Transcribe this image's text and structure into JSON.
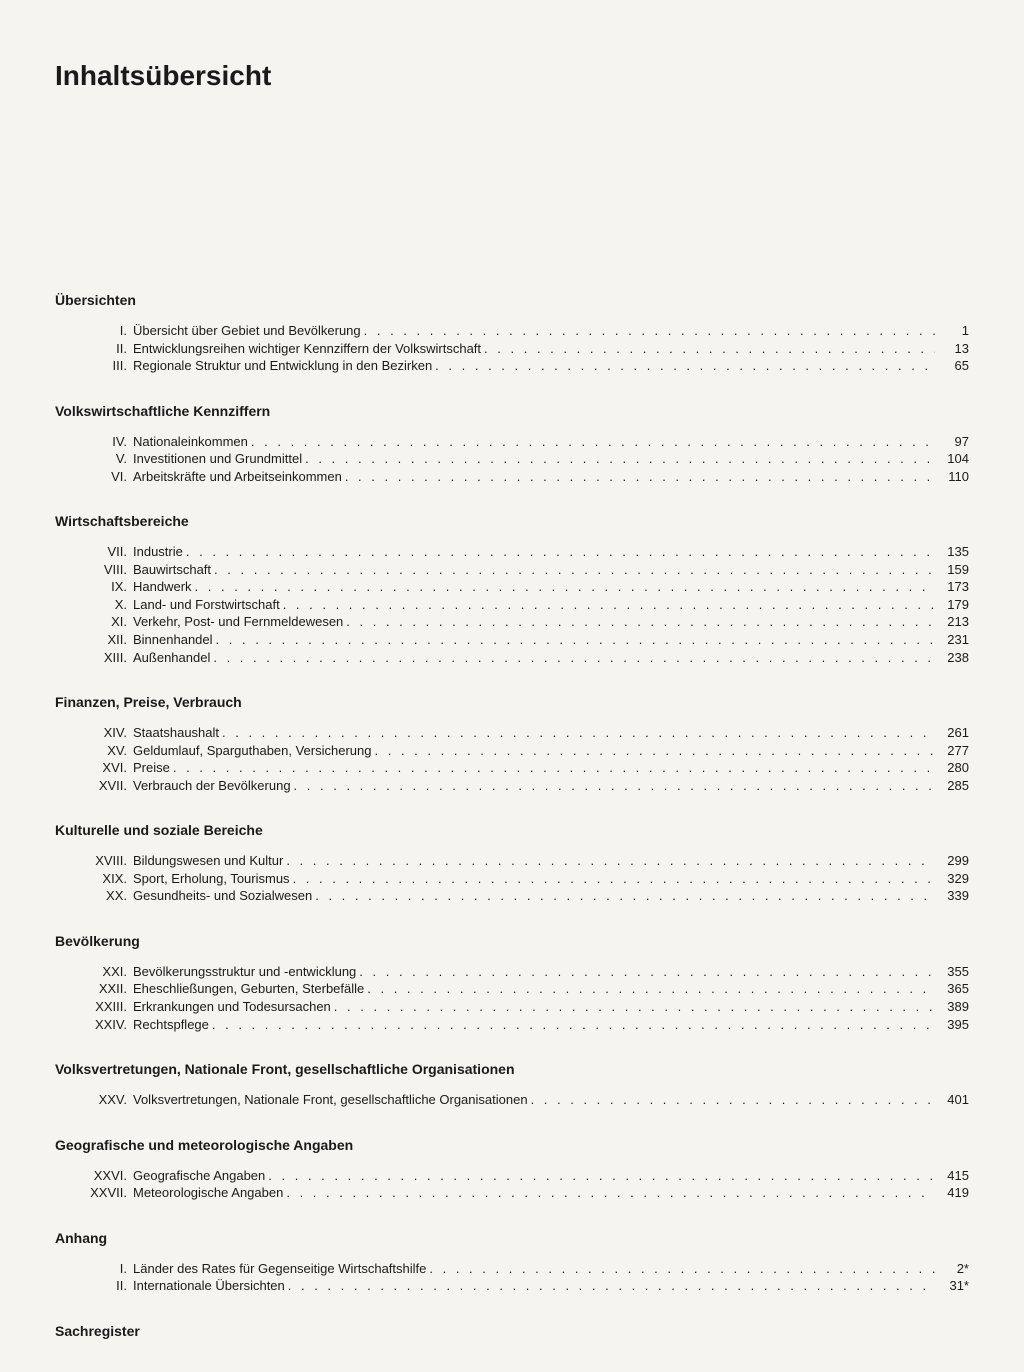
{
  "title": "Inhaltsübersicht",
  "sections": [
    {
      "header": "Übersichten",
      "entries": [
        {
          "numeral": "I.",
          "title": "Übersicht über Gebiet und Bevölkerung",
          "page": "1"
        },
        {
          "numeral": "II.",
          "title": "Entwicklungsreihen wichtiger Kennziffern der Volkswirtschaft",
          "page": "13"
        },
        {
          "numeral": "III.",
          "title": "Regionale Struktur und Entwicklung in den Bezirken",
          "page": "65"
        }
      ]
    },
    {
      "header": "Volkswirtschaftliche Kennziffern",
      "entries": [
        {
          "numeral": "IV.",
          "title": "Nationaleinkommen",
          "page": "97"
        },
        {
          "numeral": "V.",
          "title": "Investitionen und Grundmittel",
          "page": "104"
        },
        {
          "numeral": "VI.",
          "title": "Arbeitskräfte und Arbeitseinkommen",
          "page": "110"
        }
      ]
    },
    {
      "header": "Wirtschaftsbereiche",
      "entries": [
        {
          "numeral": "VII.",
          "title": "Industrie",
          "page": "135"
        },
        {
          "numeral": "VIII.",
          "title": "Bauwirtschaft",
          "page": "159"
        },
        {
          "numeral": "IX.",
          "title": "Handwerk",
          "page": "173"
        },
        {
          "numeral": "X.",
          "title": "Land- und Forstwirtschaft",
          "page": "179"
        },
        {
          "numeral": "XI.",
          "title": "Verkehr, Post- und Fernmeldewesen",
          "page": "213"
        },
        {
          "numeral": "XII.",
          "title": "Binnenhandel",
          "page": "231"
        },
        {
          "numeral": "XIII.",
          "title": "Außenhandel",
          "page": "238"
        }
      ]
    },
    {
      "header": "Finanzen, Preise, Verbrauch",
      "entries": [
        {
          "numeral": "XIV.",
          "title": "Staatshaushalt",
          "page": "261"
        },
        {
          "numeral": "XV.",
          "title": "Geldumlauf, Sparguthaben, Versicherung",
          "page": "277"
        },
        {
          "numeral": "XVI.",
          "title": "Preise",
          "page": "280"
        },
        {
          "numeral": "XVII.",
          "title": "Verbrauch der Bevölkerung",
          "page": "285"
        }
      ]
    },
    {
      "header": "Kulturelle und soziale Bereiche",
      "entries": [
        {
          "numeral": "XVIII.",
          "title": "Bildungswesen und Kultur",
          "page": "299"
        },
        {
          "numeral": "XIX.",
          "title": "Sport, Erholung, Tourismus",
          "page": "329"
        },
        {
          "numeral": "XX.",
          "title": "Gesundheits- und Sozialwesen",
          "page": "339"
        }
      ]
    },
    {
      "header": "Bevölkerung",
      "entries": [
        {
          "numeral": "XXI.",
          "title": "Bevölkerungsstruktur und -entwicklung",
          "page": "355"
        },
        {
          "numeral": "XXII.",
          "title": "Eheschließungen, Geburten, Sterbefälle",
          "page": "365"
        },
        {
          "numeral": "XXIII.",
          "title": "Erkrankungen und Todesursachen",
          "page": "389"
        },
        {
          "numeral": "XXIV.",
          "title": "Rechtspflege",
          "page": "395"
        }
      ]
    },
    {
      "header": "Volksvertretungen, Nationale Front, gesellschaftliche Organisationen",
      "entries": [
        {
          "numeral": "XXV.",
          "title": "Volksvertretungen, Nationale Front, gesellschaftliche Organisationen",
          "page": "401"
        }
      ]
    },
    {
      "header": "Geografische und meteorologische Angaben",
      "entries": [
        {
          "numeral": "XXVI.",
          "title": "Geografische Angaben",
          "page": "415"
        },
        {
          "numeral": "XXVII.",
          "title": "Meteorologische Angaben",
          "page": "419"
        }
      ]
    },
    {
      "header": "Anhang",
      "entries": [
        {
          "numeral": "I.",
          "title": "Länder des Rates für Gegenseitige Wirtschaftshilfe",
          "page": "2*"
        },
        {
          "numeral": "II.",
          "title": "Internationale Übersichten",
          "page": "31*"
        }
      ]
    }
  ],
  "footer": "Sachregister",
  "dots": ". . . . . . . . . . . . . . . . . . . . . . . . . . . . . . . . . . . . . . . . . . . . . . . . . . . . . . . . . . . . . . . . . . . . . . . . . . . . . . . . . . . . . . . . . . . . . . . . . . . . . . . . . . . . . . . . . . . . . ."
}
